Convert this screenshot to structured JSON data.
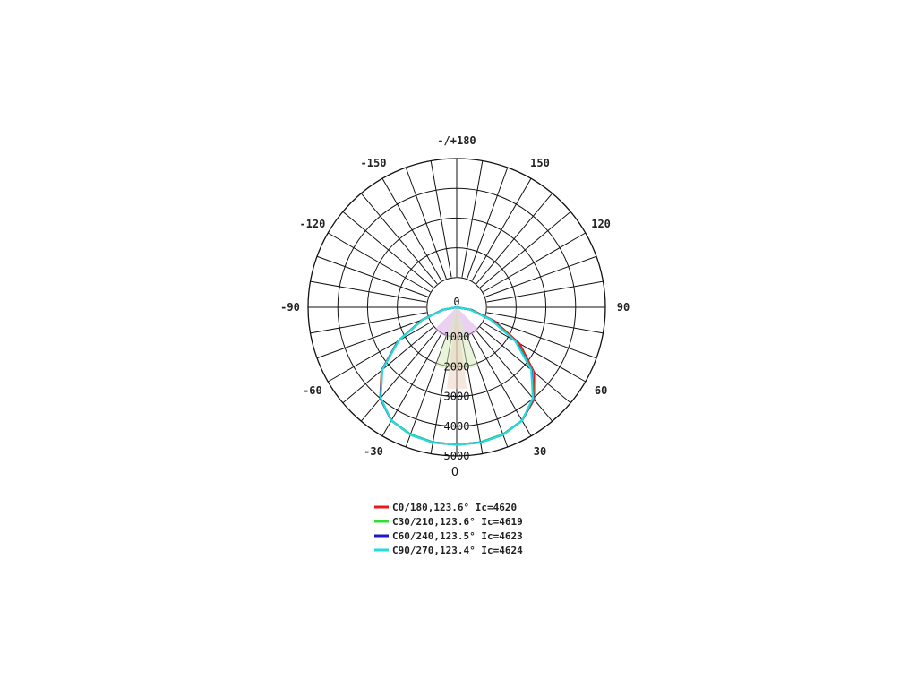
{
  "chart_data": {
    "type": "polar",
    "r_labels": [
      "0",
      "1000",
      "2000",
      "3000",
      "4000",
      "5000"
    ],
    "r_max": 5000,
    "r_step": 1000,
    "angle_labels": [
      {
        "text": "-/+180",
        "angle": 180
      },
      {
        "text": "150",
        "angle": 150
      },
      {
        "text": "-150",
        "angle": -150
      },
      {
        "text": "120",
        "angle": 120
      },
      {
        "text": "-120",
        "angle": -120
      },
      {
        "text": "90",
        "angle": 90
      },
      {
        "text": "-90",
        "angle": -90
      },
      {
        "text": "60",
        "angle": 60
      },
      {
        "text": "-60",
        "angle": -60
      },
      {
        "text": "30",
        "angle": 30
      },
      {
        "text": "-30",
        "angle": -30
      }
    ],
    "bottom_label": "0",
    "series": [
      {
        "name": "C0/180,123.6° Ic=4620",
        "color": "#e41a1c",
        "points": [
          [
            -90,
            0
          ],
          [
            -80,
            480
          ],
          [
            -70,
            1250
          ],
          [
            -60,
            2300
          ],
          [
            -50,
            3300
          ],
          [
            -40,
            4000
          ],
          [
            -30,
            4400
          ],
          [
            -20,
            4550
          ],
          [
            -10,
            4610
          ],
          [
            0,
            4620
          ],
          [
            10,
            4610
          ],
          [
            20,
            4550
          ],
          [
            30,
            4400
          ],
          [
            40,
            4050
          ],
          [
            50,
            3400
          ],
          [
            60,
            2450
          ],
          [
            70,
            1350
          ],
          [
            80,
            520
          ],
          [
            90,
            0
          ]
        ]
      },
      {
        "name": "C30/210,123.6° Ic=4619",
        "color": "#33dd33",
        "points": [
          [
            -90,
            0
          ],
          [
            -80,
            470
          ],
          [
            -70,
            1230
          ],
          [
            -60,
            2280
          ],
          [
            -50,
            3280
          ],
          [
            -40,
            3990
          ],
          [
            -30,
            4390
          ],
          [
            -20,
            4545
          ],
          [
            -10,
            4605
          ],
          [
            0,
            4619
          ],
          [
            10,
            4605
          ],
          [
            20,
            4545
          ],
          [
            30,
            4390
          ],
          [
            40,
            4010
          ],
          [
            50,
            3330
          ],
          [
            60,
            2330
          ],
          [
            70,
            1270
          ],
          [
            80,
            480
          ],
          [
            90,
            0
          ]
        ]
      },
      {
        "name": "C60/240,123.5° Ic=4623",
        "color": "#1a1acc",
        "points": [
          [
            -90,
            0
          ],
          [
            -80,
            460
          ],
          [
            -70,
            1220
          ],
          [
            -60,
            2270
          ],
          [
            -50,
            3270
          ],
          [
            -40,
            3990
          ],
          [
            -30,
            4400
          ],
          [
            -20,
            4560
          ],
          [
            -10,
            4615
          ],
          [
            0,
            4623
          ],
          [
            10,
            4615
          ],
          [
            20,
            4560
          ],
          [
            30,
            4400
          ],
          [
            40,
            4000
          ],
          [
            50,
            3290
          ],
          [
            60,
            2300
          ],
          [
            70,
            1240
          ],
          [
            80,
            470
          ],
          [
            90,
            0
          ]
        ]
      },
      {
        "name": "C90/270,123.4° Ic=4624",
        "color": "#22dddd",
        "points": [
          [
            -90,
            0
          ],
          [
            -80,
            450
          ],
          [
            -70,
            1210
          ],
          [
            -60,
            2260
          ],
          [
            -50,
            3260
          ],
          [
            -40,
            3980
          ],
          [
            -30,
            4400
          ],
          [
            -20,
            4560
          ],
          [
            -10,
            4618
          ],
          [
            0,
            4624
          ],
          [
            10,
            4618
          ],
          [
            20,
            4560
          ],
          [
            30,
            4400
          ],
          [
            40,
            3990
          ],
          [
            50,
            3270
          ],
          [
            60,
            2270
          ],
          [
            70,
            1220
          ],
          [
            80,
            450
          ],
          [
            90,
            0
          ]
        ]
      }
    ]
  }
}
